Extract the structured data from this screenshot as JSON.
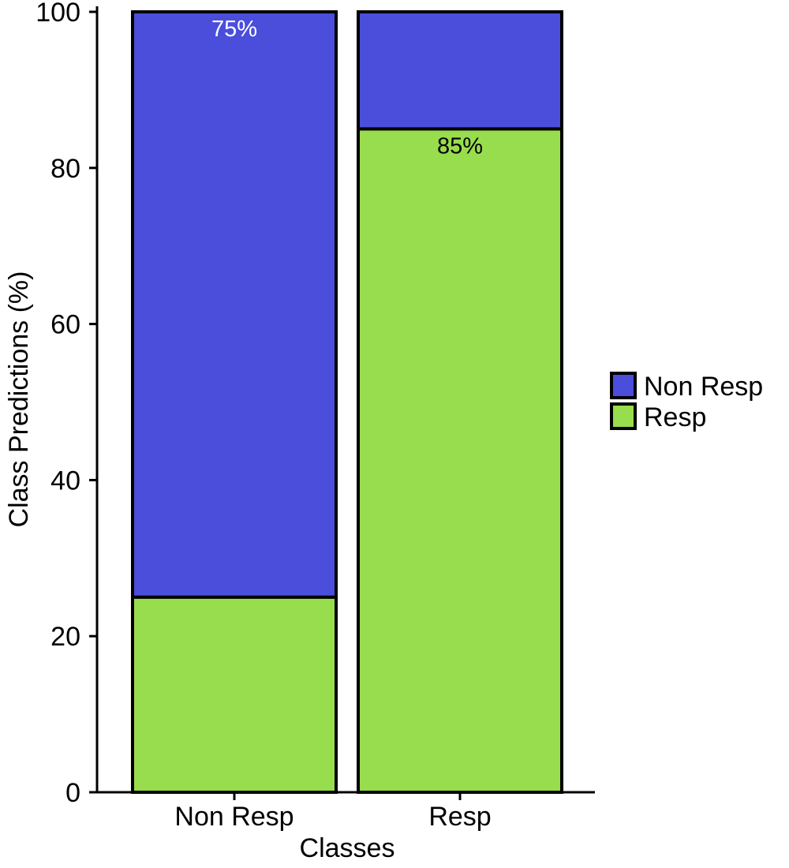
{
  "chart_data": {
    "type": "bar",
    "stacked": true,
    "categories": [
      "Non Resp",
      "Resp"
    ],
    "series": [
      {
        "name": "Resp",
        "color": "#97dd4d",
        "values": [
          25,
          85
        ]
      },
      {
        "name": "Non Resp",
        "color": "#4a4edb",
        "values": [
          75,
          15
        ]
      }
    ],
    "data_labels": [
      {
        "category": "Non Resp",
        "text": "75%",
        "color": "#ffffff",
        "y": 100
      },
      {
        "category": "Resp",
        "text": "85%",
        "color": "#000000",
        "y": 85
      }
    ],
    "xlabel": "Classes",
    "ylabel": "Class Predictions (%)",
    "ylim": [
      0,
      100
    ],
    "yticks": [
      0,
      20,
      40,
      60,
      80,
      100
    ],
    "grid": false,
    "legend_position": "right",
    "legend": [
      {
        "label": "Non Resp",
        "color": "#4a4edb"
      },
      {
        "label": "Resp",
        "color": "#97dd4d"
      }
    ]
  }
}
